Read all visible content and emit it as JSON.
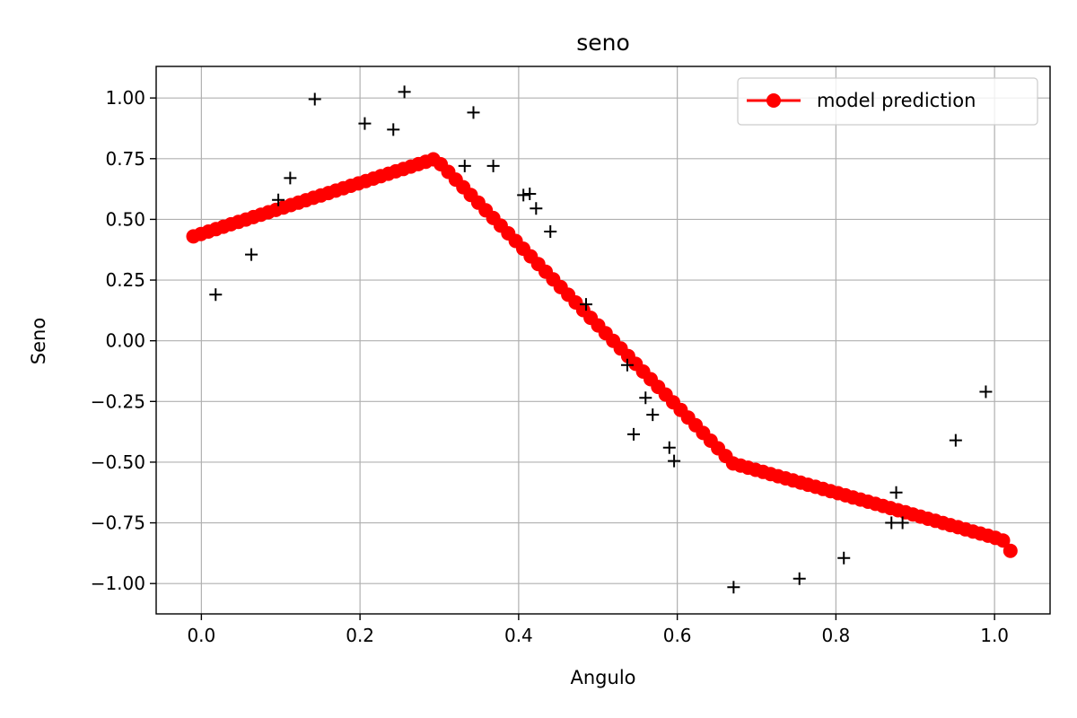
{
  "chart_data": {
    "type": "scatter",
    "title": "seno",
    "xlabel": "Angulo",
    "ylabel": "Seno",
    "xlim": [
      -0.057,
      1.07
    ],
    "ylim": [
      -1.125,
      1.13
    ],
    "xticks": [
      0.0,
      0.2,
      0.4,
      0.6,
      0.8,
      1.0
    ],
    "xtick_labels": [
      "0.0",
      "0.2",
      "0.4",
      "0.6",
      "0.8",
      "1.0"
    ],
    "yticks": [
      -1.0,
      -0.75,
      -0.5,
      -0.25,
      0.0,
      0.25,
      0.5,
      0.75,
      1.0
    ],
    "ytick_labels": [
      "−1.00",
      "−0.75",
      "−0.50",
      "−0.25",
      "0.00",
      "0.25",
      "0.50",
      "0.75",
      "1.00"
    ],
    "grid": true,
    "legend_position": "top-right",
    "colors": {
      "prediction": "#ff0000",
      "observed": "#000000"
    },
    "series": [
      {
        "name": "model prediction",
        "style": "line-marker",
        "knots": [
          {
            "x": -0.01,
            "y": 0.43
          },
          {
            "x": 0.295,
            "y": 0.75
          },
          {
            "x": 0.67,
            "y": -0.505
          },
          {
            "x": 1.01,
            "y": -0.82
          },
          {
            "x": 1.02,
            "y": -0.865
          }
        ],
        "n_points": 110
      },
      {
        "style": "plus-marker",
        "points": [
          [
            0.018,
            0.19
          ],
          [
            0.063,
            0.355
          ],
          [
            0.097,
            0.58
          ],
          [
            0.112,
            0.67
          ],
          [
            0.143,
            0.995
          ],
          [
            0.206,
            0.895
          ],
          [
            0.242,
            0.87
          ],
          [
            0.256,
            1.025
          ],
          [
            0.332,
            0.72
          ],
          [
            0.343,
            0.94
          ],
          [
            0.368,
            0.72
          ],
          [
            0.406,
            0.6
          ],
          [
            0.414,
            0.605
          ],
          [
            0.422,
            0.545
          ],
          [
            0.44,
            0.45
          ],
          [
            0.485,
            0.15
          ],
          [
            0.537,
            -0.1
          ],
          [
            0.545,
            -0.385
          ],
          [
            0.56,
            -0.235
          ],
          [
            0.569,
            -0.305
          ],
          [
            0.59,
            -0.44
          ],
          [
            0.596,
            -0.495
          ],
          [
            0.671,
            -1.015
          ],
          [
            0.754,
            -0.98
          ],
          [
            0.81,
            -0.895
          ],
          [
            0.87,
            -0.75
          ],
          [
            0.876,
            -0.625
          ],
          [
            0.884,
            -0.75
          ],
          [
            0.951,
            -0.41
          ],
          [
            0.989,
            -0.21
          ]
        ]
      }
    ]
  }
}
